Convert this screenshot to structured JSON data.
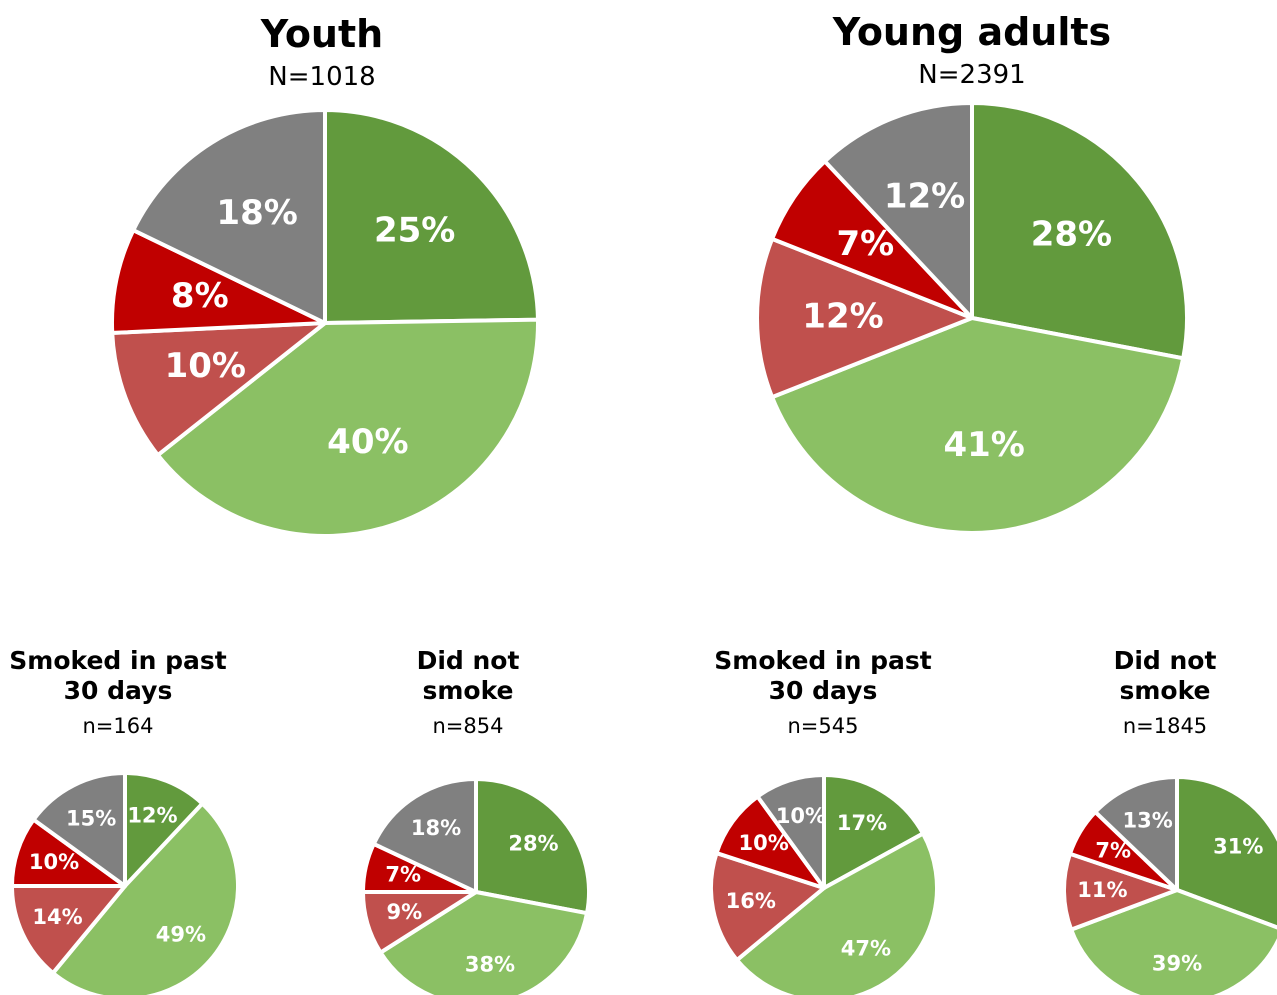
{
  "chart_data": [
    {
      "type": "pie",
      "title": "Youth",
      "subtitle": "N=1018",
      "values": [
        25,
        40,
        10,
        8,
        18
      ],
      "value_labels": [
        "25%",
        "40%",
        "10%",
        "8%",
        "18%"
      ],
      "colors": [
        "#629a3d",
        "#8bc064",
        "#c0504d",
        "#c00000",
        "#808080"
      ]
    },
    {
      "type": "pie",
      "title": "Young adults",
      "subtitle": "N=2391",
      "values": [
        28,
        41,
        12,
        7,
        12
      ],
      "value_labels": [
        "28%",
        "41%",
        "12%",
        "7%",
        "12%"
      ],
      "colors": [
        "#629a3d",
        "#8bc064",
        "#c0504d",
        "#c00000",
        "#808080"
      ]
    },
    {
      "type": "pie",
      "title": "Smoked in past 30 days",
      "subtitle": "n=164",
      "values": [
        12,
        49,
        14,
        10,
        15
      ],
      "value_labels": [
        "12%",
        "49%",
        "14%",
        "10%",
        "15%"
      ],
      "colors": [
        "#629a3d",
        "#8bc064",
        "#c0504d",
        "#c00000",
        "#808080"
      ]
    },
    {
      "type": "pie",
      "title": "Did not smoke",
      "subtitle": "n=854",
      "values": [
        28,
        38,
        9,
        7,
        18
      ],
      "value_labels": [
        "28%",
        "38%",
        "9%",
        "7%",
        "18%"
      ],
      "colors": [
        "#629a3d",
        "#8bc064",
        "#c0504d",
        "#c00000",
        "#808080"
      ]
    },
    {
      "type": "pie",
      "title": "Smoked in past 30 days",
      "subtitle": "n=545",
      "values": [
        17,
        47,
        16,
        10,
        10
      ],
      "value_labels": [
        "17%",
        "47%",
        "16%",
        "10%",
        "10%"
      ],
      "colors": [
        "#629a3d",
        "#8bc064",
        "#c0504d",
        "#c00000",
        "#808080"
      ]
    },
    {
      "type": "pie",
      "title": "Did not smoke",
      "subtitle": "n=1845",
      "values": [
        31,
        39,
        11,
        7,
        13
      ],
      "value_labels": [
        "31%",
        "39%",
        "11%",
        "7%",
        "13%"
      ],
      "colors": [
        "#629a3d",
        "#8bc064",
        "#c0504d",
        "#c00000",
        "#808080"
      ]
    }
  ]
}
